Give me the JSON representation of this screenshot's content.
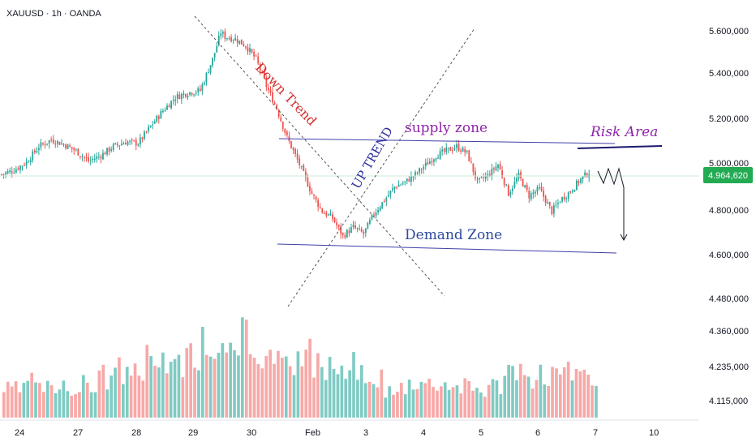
{
  "header": {
    "symbol": "XAUUSD · 1h · OANDA"
  },
  "colors": {
    "up": "#26a69a",
    "down": "#ef5350",
    "vol_up": "#80cbc4",
    "vol_down": "#f7a9a7",
    "price_line": "#22ab52",
    "annotation_blue": "#3f3fa8",
    "annotation_red": "#d32f2f",
    "annotation_purple": "#8e24aa"
  },
  "chart_data": {
    "type": "candlestick",
    "title": "",
    "xlabel": "",
    "ylabel": "",
    "x_ticks": [
      "24",
      "27",
      "28",
      "29",
      "30",
      "Feb",
      "3",
      "4",
      "5",
      "6",
      "7",
      "10"
    ],
    "y_ticks": [
      "5.600,000",
      "5.400,000",
      "5.200,000",
      "5.000,000",
      "4.800,000",
      "4.600,000",
      "4.480,000",
      "4.360,000",
      "4.235,000",
      "4.115,000"
    ],
    "last_price": "4.964,620",
    "price_range": [
      4380,
      5620
    ],
    "close_path": [
      [
        0,
        4955
      ],
      [
        6,
        4975
      ],
      [
        12,
        5010
      ],
      [
        18,
        5080
      ],
      [
        24,
        5110
      ],
      [
        30,
        5090
      ],
      [
        36,
        5060
      ],
      [
        42,
        5015
      ],
      [
        48,
        5040
      ],
      [
        54,
        5080
      ],
      [
        60,
        5100
      ],
      [
        66,
        5095
      ],
      [
        72,
        5170
      ],
      [
        78,
        5240
      ],
      [
        84,
        5300
      ],
      [
        90,
        5320
      ],
      [
        96,
        5330
      ],
      [
        102,
        5470
      ],
      [
        106,
        5590
      ],
      [
        108,
        5570
      ],
      [
        113,
        5560
      ],
      [
        118,
        5530
      ],
      [
        123,
        5470
      ],
      [
        128,
        5350
      ],
      [
        133,
        5250
      ],
      [
        138,
        5120
      ],
      [
        144,
        5000
      ],
      [
        150,
        4870
      ],
      [
        155,
        4790
      ],
      [
        160,
        4760
      ],
      [
        165,
        4680
      ],
      [
        170,
        4720
      ],
      [
        175,
        4690
      ],
      [
        180,
        4780
      ],
      [
        185,
        4840
      ],
      [
        190,
        4900
      ],
      [
        195,
        4920
      ],
      [
        200,
        4955
      ],
      [
        210,
        5040
      ],
      [
        220,
        5080
      ],
      [
        225,
        5050
      ],
      [
        230,
        4920
      ],
      [
        235,
        4950
      ],
      [
        240,
        5000
      ],
      [
        245,
        4870
      ],
      [
        250,
        4950
      ],
      [
        255,
        4860
      ],
      [
        260,
        4890
      ],
      [
        266,
        4790
      ],
      [
        270,
        4840
      ],
      [
        275,
        4880
      ],
      [
        280,
        4935
      ],
      [
        284,
        4965
      ]
    ],
    "volume": {
      "range": [
        0,
        1
      ],
      "values": [
        0.27,
        0.27,
        0.26,
        0.38,
        0.27,
        0.29,
        0.26,
        0.35,
        0.29,
        0.25,
        0.32,
        0.3,
        0.43,
        0.36,
        0.45,
        0.38,
        0.5,
        0.49,
        0.54,
        0.4,
        0.57,
        0.55,
        0.48,
        0.62,
        0.53,
        0.7,
        0.5,
        0.71,
        0.62,
        0.55,
        0.74,
        0.64,
        0.58,
        0.78,
        0.59,
        0.81,
        0.57,
        0.54,
        0.62,
        0.47,
        0.46,
        0.53,
        0.41,
        0.41,
        0.5,
        0.4,
        0.3,
        0.4,
        0.26,
        0.23,
        0.3,
        0.34,
        0.37,
        0.33,
        0.35,
        0.33,
        0.33,
        0.29,
        0.3,
        0.28,
        0.26,
        0.32,
        0.31,
        0.48,
        0.46,
        0.4,
        0.33,
        0.48,
        0.28,
        0.41,
        0.41,
        0.49,
        0.38,
        0.44,
        0.32
      ]
    }
  },
  "annotations": {
    "down_trend": "Down Trend",
    "up_trend": "UP TREND",
    "supply_zone": "supply zone",
    "demand_zone": "Demand Zone",
    "risk_area": "Risk Area"
  }
}
